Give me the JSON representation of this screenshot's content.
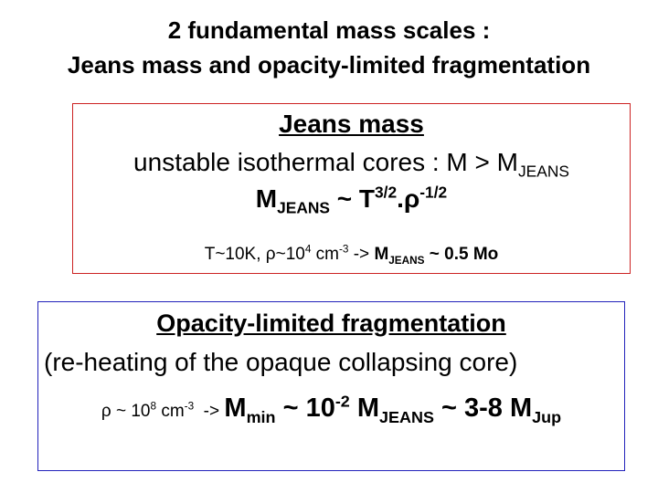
{
  "title": {
    "line1": "2 fundamental mass scales :",
    "line2": "Jeans mass and opacity-limited fragmentation"
  },
  "jeans_box": {
    "border_color": "#cc2222",
    "heading": "Jeans mass",
    "condition_text": "unstable isothermal cores : M > M",
    "condition_sub": "JEANS",
    "formula": {
      "m": "M",
      "m_sub": "JEANS",
      "t": " ~ T",
      "t_sup": "3/2",
      "rho": ".ρ",
      "rho_sup": "-1/2"
    },
    "example": {
      "a": "T~10K, ρ~10",
      "a_sup": "4",
      "b": " cm",
      "b_sup": "-3",
      "c": " -> ",
      "m": "M",
      "m_sub": "JEANS",
      "d": " ~ 0.5 Mo"
    }
  },
  "opacity_box": {
    "border_color": "#2222bb",
    "heading": "Opacity-limited fragmentation",
    "subtitle": "(re-heating of the opaque collapsing core)",
    "result": {
      "a": "ρ ~ 10",
      "a_sup": "8",
      "b": " cm",
      "b_sup": "-3",
      "c": "  -> ",
      "m": "M",
      "m_sub": "min",
      "d": " ~ 10",
      "d_sup": "-2",
      "e": " M",
      "e_sub": "JEANS",
      "f": " ~ 3-8 M",
      "f_sub": "Jup"
    }
  }
}
